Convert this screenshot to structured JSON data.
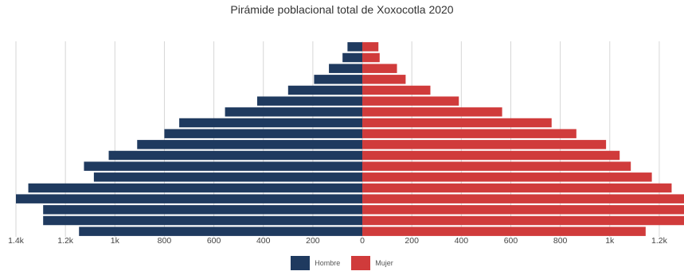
{
  "chart_data": {
    "type": "bar",
    "orientation": "horizontal-population-pyramid",
    "title": "Pirámide poblacional total de Xoxocotla 2020",
    "xlim": [
      -1400,
      1300
    ],
    "x_ticks": [
      -1400,
      -1200,
      -1000,
      -800,
      -600,
      -400,
      -200,
      0,
      200,
      400,
      600,
      800,
      1000,
      1200
    ],
    "x_tick_labels": [
      "1.4k",
      "1.2k",
      "1k",
      "800",
      "600",
      "400",
      "200",
      "0",
      "200",
      "400",
      "600",
      "800",
      "1k",
      "1.2k"
    ],
    "grid": true,
    "legend_position": "bottom-center",
    "series": [
      {
        "name": "Hombre",
        "color": "#1f3a5f",
        "values": [
          60,
          80,
          135,
          195,
          300,
          425,
          555,
          740,
          800,
          910,
          1025,
          1125,
          1085,
          1350,
          1400,
          1290,
          1290,
          1145
        ]
      },
      {
        "name": "Mujer",
        "color": "#d03b3b",
        "values": [
          65,
          70,
          140,
          175,
          275,
          390,
          565,
          765,
          865,
          985,
          1040,
          1085,
          1170,
          1250,
          1320,
          1310,
          1300,
          1145
        ]
      }
    ]
  }
}
